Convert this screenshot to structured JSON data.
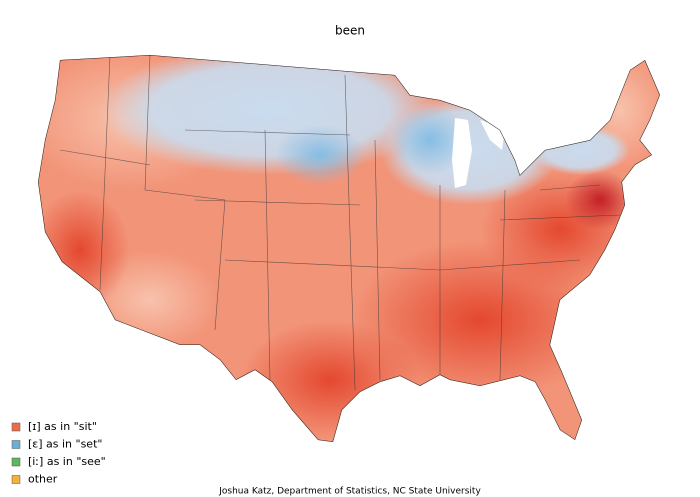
{
  "title": "been",
  "legend": [
    {
      "label": "[ɪ] as in \"sit\"",
      "color": "#ee6a4a"
    },
    {
      "label": "[ɛ] as in \"set\"",
      "color": "#6aaed6"
    },
    {
      "label": "[iː] as in \"see\"",
      "color": "#5cb85c"
    },
    {
      "label": "other",
      "color": "#f2b13a"
    }
  ],
  "credit": "Joshua Katz, Department of Statistics, NC State University"
}
